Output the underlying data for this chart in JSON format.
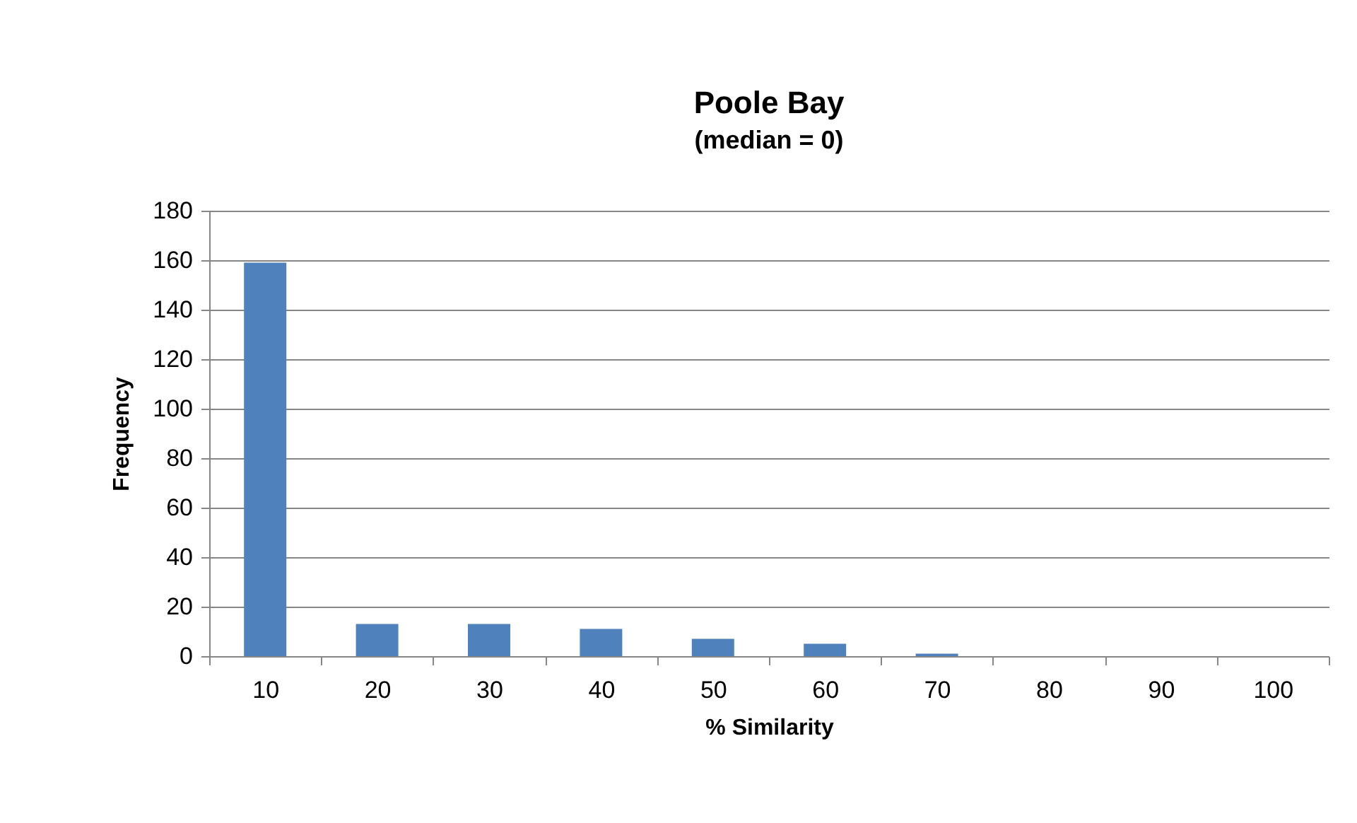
{
  "chart_data": {
    "type": "bar",
    "title": "Poole Bay",
    "subtitle": "(median =  0)",
    "xlabel": "% Similarity",
    "ylabel": "Frequency",
    "categories": [
      "10",
      "20",
      "30",
      "40",
      "50",
      "60",
      "70",
      "80",
      "90",
      "100"
    ],
    "series": [
      {
        "color": "#4f81bd",
        "values": [
          159,
          13,
          13,
          11,
          7,
          5,
          1,
          0,
          0,
          0
        ]
      }
    ],
    "ylim": [
      0,
      180
    ],
    "yticks": [
      0,
      20,
      40,
      60,
      80,
      100,
      120,
      140,
      160,
      180
    ],
    "grid": "y",
    "legend": false
  }
}
